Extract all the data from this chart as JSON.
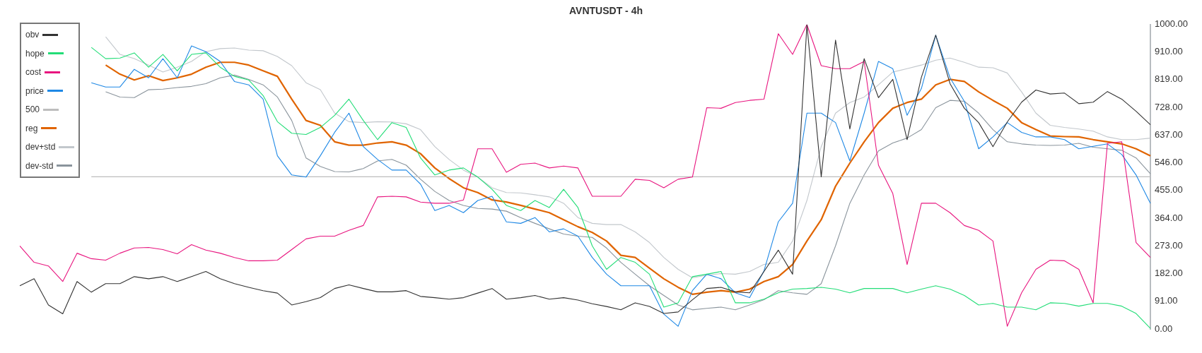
{
  "chart_data": {
    "type": "line",
    "title": "AVNTUSDT - 4h",
    "categories": [
      null,
      null,
      null,
      null,
      null,
      null,
      null,
      null,
      null,
      null,
      null,
      null,
      null,
      null,
      null,
      null,
      null,
      null,
      null,
      null,
      null,
      null,
      null,
      null,
      null,
      null,
      null,
      null,
      null,
      null,
      null,
      null,
      null,
      null,
      null,
      null,
      null,
      null,
      null,
      null,
      null,
      null,
      null,
      null,
      null,
      null,
      null,
      null,
      null,
      null,
      null,
      null,
      null,
      null,
      null,
      null,
      null,
      null,
      null,
      null,
      null,
      null,
      null,
      null,
      null,
      null,
      null,
      null,
      null,
      null,
      null,
      null,
      null,
      null,
      null,
      null,
      null,
      null,
      null,
      null
    ],
    "series": [
      {
        "name": "obv",
        "color": "#333333",
        "values": [
          142,
          165,
          79,
          50,
          156,
          121,
          149,
          149,
          172,
          165,
          172,
          156,
          172,
          189,
          165,
          149,
          137,
          126,
          118,
          79,
          90,
          103,
          133,
          145,
          133,
          122,
          122,
          126,
          107,
          103,
          98,
          103,
          118,
          133,
          98,
          103,
          110,
          98,
          103,
          95,
          83,
          74,
          63,
          86,
          74,
          51,
          56,
          96,
          133,
          137,
          122,
          119,
          189,
          259,
          180,
          1000,
          500,
          949,
          657,
          888,
          760,
          820,
          622,
          827,
          965,
          806,
          725,
          678,
          599,
          680,
          745,
          785,
          772,
          775,
          740,
          745,
          780,
          755,
          715,
          671
        ]
      },
      {
        "name": "hope",
        "color": "#22dd77",
        "values": [
          null,
          null,
          null,
          null,
          null,
          925,
          888,
          890,
          907,
          860,
          902,
          848,
          902,
          907,
          860,
          830,
          818,
          767,
          681,
          643,
          639,
          662,
          702,
          755,
          685,
          622,
          678,
          662,
          562,
          506,
          522,
          529,
          499,
          459,
          406,
          389,
          422,
          399,
          459,
          399,
          273,
          196,
          235,
          219,
          180,
          72,
          86,
          172,
          180,
          189,
          86,
          86,
          98,
          119,
          131,
          133,
          137,
          131,
          119,
          133,
          133,
          133,
          119,
          131,
          142,
          131,
          110,
          79,
          84,
          72,
          72,
          63,
          86,
          84,
          75,
          84,
          84,
          75,
          51,
          2
        ]
      },
      {
        "name": "cost",
        "color": "#e8157f",
        "values": [
          273,
          219,
          207,
          156,
          249,
          231,
          226,
          249,
          266,
          268,
          261,
          247,
          277,
          259,
          249,
          235,
          224,
          224,
          226,
          261,
          296,
          305,
          305,
          324,
          340,
          434,
          436,
          434,
          417,
          413,
          413,
          424,
          592,
          592,
          515,
          541,
          545,
          529,
          535,
          529,
          436,
          436,
          436,
          492,
          488,
          464,
          492,
          499,
          727,
          725,
          744,
          751,
          755,
          970,
          902,
          1000,
          865,
          855,
          855,
          879,
          538,
          445,
          212,
          413,
          413,
          382,
          340,
          324,
          289,
          9,
          119,
          196,
          226,
          224,
          196,
          86,
          610,
          615,
          284,
          235
        ]
      },
      {
        "name": "price",
        "color": "#1e88e5",
        "values": [
          null,
          null,
          null,
          null,
          null,
          809,
          795,
          795,
          853,
          825,
          888,
          825,
          930,
          911,
          879,
          813,
          802,
          755,
          569,
          506,
          499,
          569,
          646,
          709,
          599,
          557,
          522,
          522,
          476,
          389,
          406,
          382,
          422,
          436,
          352,
          347,
          366,
          319,
          329,
          305,
          235,
          180,
          142,
          142,
          142,
          49,
          9,
          126,
          180,
          165,
          119,
          103,
          191,
          352,
          413,
          709,
          709,
          678,
          552,
          709,
          879,
          855,
          702,
          790,
          965,
          825,
          748,
          592,
          631,
          678,
          646,
          631,
          631,
          622,
          592,
          600,
          608,
          573,
          506,
          413
        ]
      },
      {
        "name": "500",
        "color": "#bdbdbd",
        "values": [
          null,
          null,
          null,
          null,
          null,
          500,
          500,
          500,
          500,
          500,
          500,
          500,
          500,
          500,
          500,
          500,
          500,
          500,
          500,
          500,
          500,
          500,
          500,
          500,
          500,
          500,
          500,
          500,
          500,
          500,
          500,
          500,
          500,
          500,
          500,
          500,
          500,
          500,
          500,
          500,
          500,
          500,
          500,
          500,
          500,
          500,
          500,
          500,
          500,
          500,
          500,
          500,
          500,
          500,
          500,
          500,
          500,
          500,
          500,
          500,
          500,
          500,
          500,
          500,
          500,
          500,
          500,
          500,
          500,
          500,
          500,
          500,
          500,
          500,
          500,
          500,
          500,
          500,
          500,
          500
        ]
      },
      {
        "name": "reg",
        "color": "#e06400",
        "values": [
          null,
          null,
          null,
          null,
          null,
          null,
          867,
          837,
          818,
          832,
          816,
          825,
          837,
          860,
          876,
          876,
          867,
          848,
          830,
          755,
          685,
          669,
          615,
          604,
          604,
          611,
          615,
          604,
          576,
          529,
          494,
          464,
          448,
          424,
          417,
          406,
          394,
          382,
          359,
          336,
          317,
          289,
          242,
          235,
          200,
          165,
          137,
          114,
          121,
          126,
          121,
          131,
          156,
          172,
          212,
          289,
          359,
          469,
          545,
          615,
          678,
          725,
          744,
          755,
          802,
          820,
          813,
          779,
          751,
          725,
          678,
          655,
          634,
          632,
          631,
          622,
          615,
          608,
          592,
          569
        ]
      },
      {
        "name": "dev+std",
        "color": "#c2c7cc",
        "values": [
          null,
          null,
          null,
          null,
          null,
          null,
          960,
          902,
          888,
          867,
          844,
          860,
          879,
          911,
          921,
          923,
          916,
          914,
          895,
          865,
          809,
          786,
          709,
          681,
          678,
          681,
          680,
          674,
          655,
          599,
          557,
          522,
          499,
          464,
          448,
          447,
          441,
          434,
          413,
          366,
          347,
          343,
          343,
          319,
          284,
          235,
          196,
          168,
          177,
          182,
          180,
          189,
          212,
          219,
          289,
          422,
          599,
          709,
          744,
          762,
          802,
          844,
          855,
          867,
          883,
          890,
          876,
          860,
          858,
          841,
          779,
          709,
          669,
          662,
          657,
          650,
          631,
          622,
          622,
          627
        ]
      },
      {
        "name": "dev-std",
        "color": "#8a949c",
        "values": [
          null,
          null,
          null,
          null,
          null,
          null,
          779,
          762,
          760,
          786,
          788,
          793,
          797,
          806,
          825,
          834,
          820,
          802,
          762,
          685,
          562,
          534,
          517,
          516,
          527,
          552,
          557,
          538,
          492,
          452,
          422,
          406,
          396,
          394,
          387,
          366,
          347,
          329,
          312,
          305,
          301,
          266,
          219,
          180,
          142,
          110,
          79,
          63,
          68,
          72,
          63,
          79,
          96,
          126,
          119,
          114,
          149,
          273,
          413,
          506,
          585,
          611,
          627,
          655,
          727,
          751,
          748,
          709,
          655,
          615,
          608,
          604,
          603,
          604,
          610,
          597,
          592,
          587,
          562,
          510
        ]
      }
    ],
    "ylim": [
      0,
      1000
    ],
    "yticks": [
      {
        "value": 0,
        "label": "0.00"
      },
      {
        "value": 91,
        "label": "91.00"
      },
      {
        "value": 182,
        "label": "182.00"
      },
      {
        "value": 273,
        "label": "273.00"
      },
      {
        "value": 364,
        "label": "364.00"
      },
      {
        "value": 455,
        "label": "455.00"
      },
      {
        "value": 546,
        "label": "546.00"
      },
      {
        "value": 637,
        "label": "637.00"
      },
      {
        "value": 728,
        "label": "728.00"
      },
      {
        "value": 819,
        "label": "819.00"
      },
      {
        "value": 910,
        "label": "910.00"
      },
      {
        "value": 1000,
        "label": "1000.00"
      }
    ],
    "tick_labels": "y",
    "grid": false,
    "legend": "top left",
    "marker": "none",
    "line_style": "solid"
  }
}
